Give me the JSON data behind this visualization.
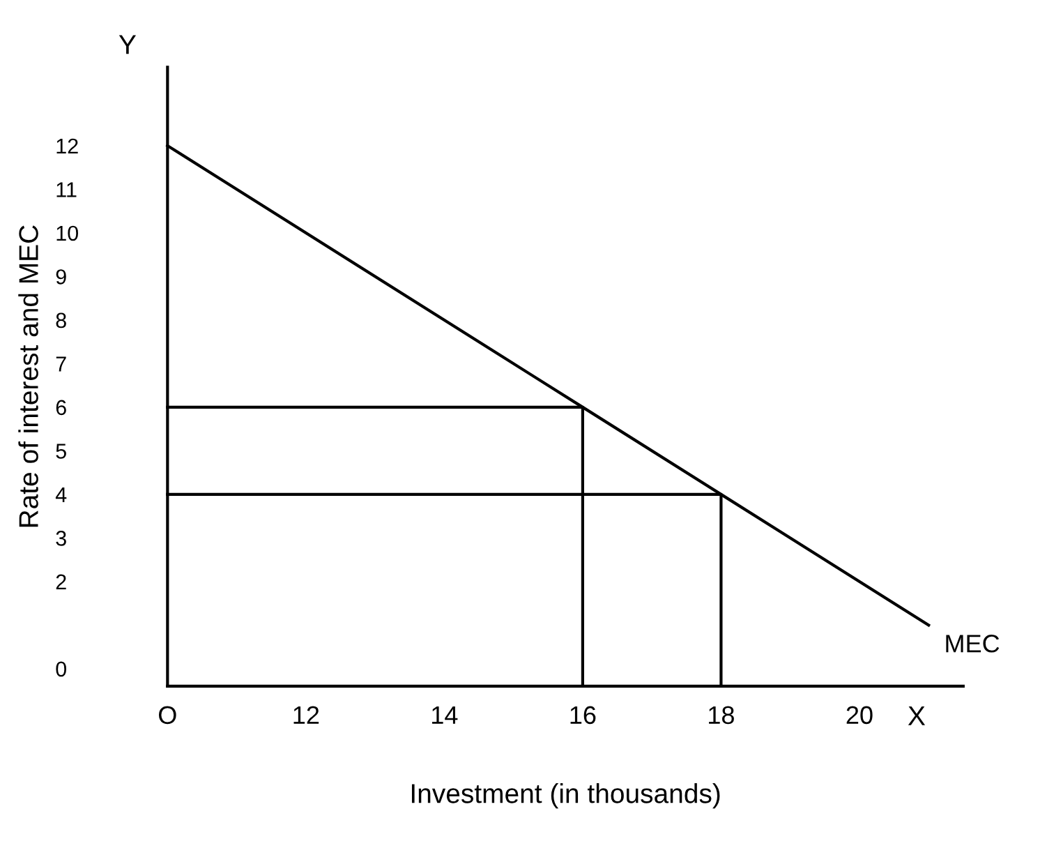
{
  "chart_data": {
    "type": "line",
    "xlabel": "Investment (in thousands)",
    "ylabel": "Rate of interest and MEC",
    "xlim": [
      10,
      21.5
    ],
    "ylim": [
      -0.4,
      13.8
    ],
    "xticks": [
      {
        "value": 10,
        "label": "O"
      },
      12,
      14,
      16,
      18,
      20
    ],
    "yticks": [
      0,
      2,
      3,
      4,
      5,
      6,
      7,
      8,
      9,
      10,
      11,
      12
    ],
    "series": [
      {
        "name": "MEC",
        "color": "#000000",
        "x": [
          10,
          16,
          18,
          21
        ],
        "values": [
          12,
          6,
          4,
          1
        ]
      },
      {
        "color": "#000000",
        "x": [
          10,
          16,
          16
        ],
        "values": [
          6,
          6,
          -0.4
        ]
      },
      {
        "color": "#000000",
        "x": [
          10,
          18,
          18
        ],
        "values": [
          4,
          4,
          -0.4
        ]
      }
    ],
    "annotations": [
      "Y",
      "X"
    ],
    "grid": false,
    "legend": false,
    "marker": "none",
    "line_style": "solid"
  }
}
